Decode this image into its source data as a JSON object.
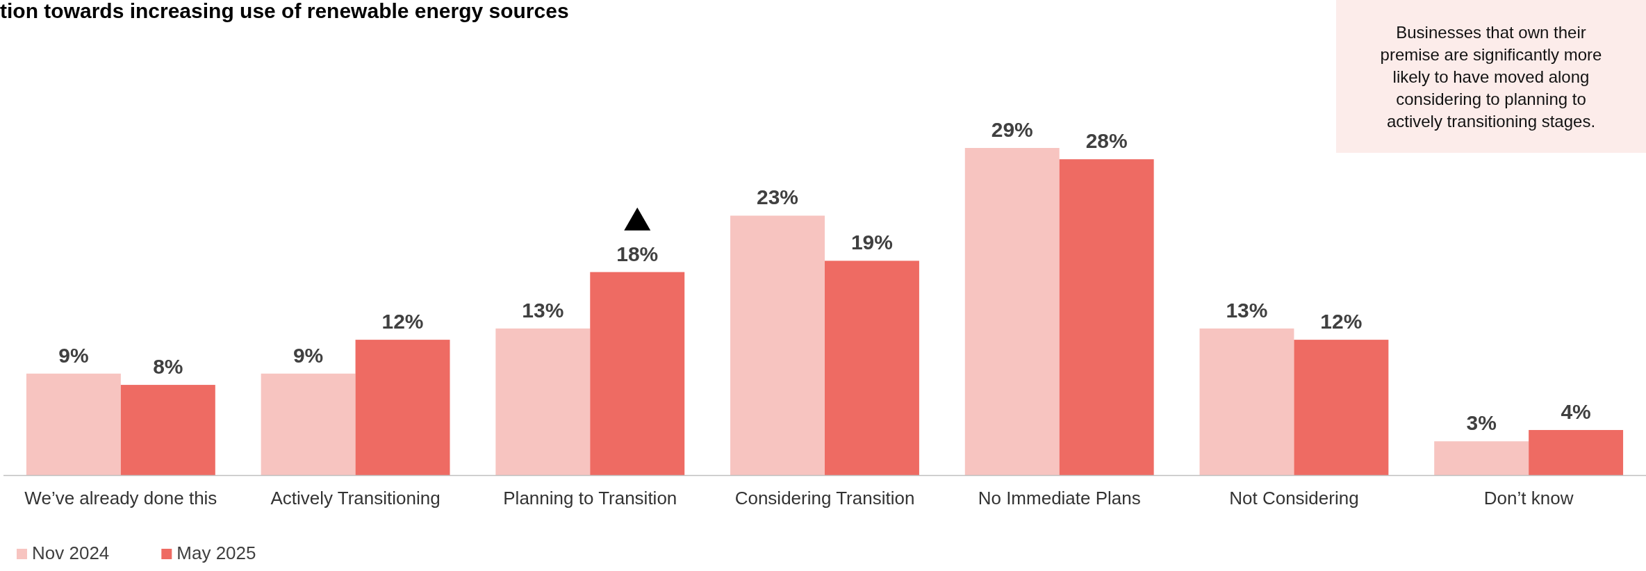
{
  "chart_data": {
    "type": "bar",
    "title": "tion towards increasing use of renewable energy sources",
    "categories": [
      "We’ve already done this",
      "Actively Transitioning",
      "Planning to Transition",
      "Considering Transition",
      "No Immediate Plans",
      "Not Considering",
      "Don’t know"
    ],
    "series": [
      {
        "name": "Nov 2024",
        "color": "#f7c4c0",
        "values": [
          9,
          9,
          13,
          23,
          29,
          13,
          3
        ],
        "value_labels": [
          "9%",
          "9%",
          "13%",
          "23%",
          "29%",
          "13%",
          "3%"
        ]
      },
      {
        "name": "May 2025",
        "color": "#ee6b63",
        "values": [
          8,
          12,
          18,
          19,
          28,
          12,
          4
        ],
        "value_labels": [
          "8%",
          "12%",
          "18%",
          "19%",
          "28%",
          "12%",
          "4%"
        ]
      }
    ],
    "annotations": [
      "Businesses that own their premise are significantly more likely to have moved along considering to planning to actively transitioning stages."
    ],
    "legend": "bottom left",
    "grid": false
  }
}
